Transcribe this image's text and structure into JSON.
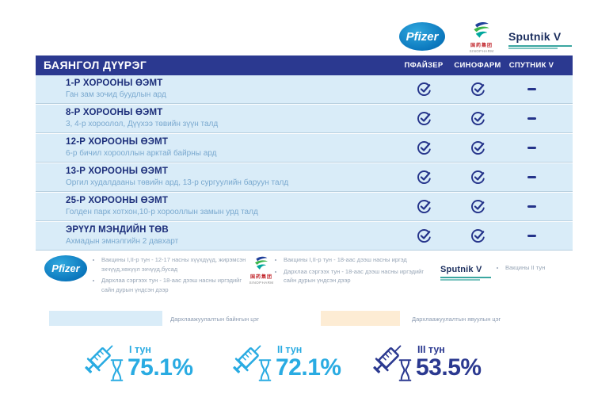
{
  "brand": {
    "pfizer_label": "Pfizer",
    "sinopharm_cn": "国药集团",
    "sinopharm_label": "SINOPHARM",
    "sputnik_label": "Sputnik V"
  },
  "table": {
    "title": "БАЯНГОЛ ДҮҮРЭГ",
    "columns": [
      "ПФАЙЗЕР",
      "СИНОФАРМ",
      "СПУТНИК V"
    ],
    "rows": [
      {
        "name": "1-Р ХОРООНЫ ӨЭМТ",
        "address": "Ган зам зочид буудлын ард",
        "marks": [
          "check",
          "check",
          "dash"
        ]
      },
      {
        "name": "8-Р ХОРООНЫ ӨЭМТ",
        "address": "3, 4-р хороолол, Дүүхээ төвийн зүүн талд",
        "marks": [
          "check",
          "check",
          "dash"
        ]
      },
      {
        "name": "12-Р ХОРООНЫ ӨЭМТ",
        "address": "6-р бичил хорооллын арктай байрны ард",
        "marks": [
          "check",
          "check",
          "dash"
        ]
      },
      {
        "name": "13-Р ХОРООНЫ ӨЭМТ",
        "address": "Оргил худалдааны төвийн ард, 13-р сургуулийн баруун талд",
        "marks": [
          "check",
          "check",
          "dash"
        ]
      },
      {
        "name": "25-Р ХОРООНЫ ӨЭМТ",
        "address": "Голден парк хотхон,10-р хорооллын замын урд талд",
        "marks": [
          "check",
          "check",
          "dash"
        ]
      },
      {
        "name": "ЭРҮҮЛ МЭНДИЙН ТӨВ",
        "address": "Ахмадын эмнэлгийн 2 давхарт",
        "marks": [
          "check",
          "check",
          "dash"
        ]
      }
    ]
  },
  "notes": [
    {
      "logo": "pfizer",
      "bullets": [
        "Вакцины I,II-р тун - 12-17 насны хүүхдүүд, жирэмсэн эхчүүд,хөхүүл эхчүүд,бусад",
        "Дархлаа сэргээх тун - 18-аас дээш насны иргэдийг сайн дурын үндсэн дээр"
      ]
    },
    {
      "logo": "sinopharm",
      "bullets": [
        "Вакцины I,II-р тун - 18-аас дээш насны иргэд",
        "Дархлаа сэргээх тун - 18-аас дээш насны иргэдийг сайн дурын үндсэн дээр"
      ]
    },
    {
      "logo": "sputnik",
      "bullets": [
        "Вакцины II тун"
      ]
    }
  ],
  "point_legend": [
    {
      "color": "#d9ecf8",
      "label": "Дархлаажуулалтын байнгын цэг"
    },
    {
      "color": "#fdecd4",
      "label": "Дархлаажуулалтын явуулын цэг"
    }
  ],
  "stats": [
    {
      "label": "I тун",
      "value": "75.1%",
      "color": "#29abe2"
    },
    {
      "label": "II тун",
      "value": "72.1%",
      "color": "#29abe2"
    },
    {
      "label": "III тун",
      "value": "53.5%",
      "color": "#2b3990"
    }
  ],
  "colors": {
    "header_bg": "#2b3990",
    "row_bg": "#d9ecf8",
    "row_title": "#1c2e7a",
    "row_subtitle": "#7aa9cf",
    "check": "#24338a",
    "accent_light_blue": "#29abe2",
    "accent_navy": "#2b3990"
  }
}
